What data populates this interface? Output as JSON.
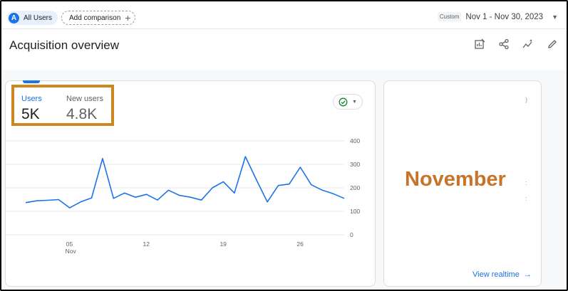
{
  "topbar": {
    "segment": {
      "avatar_letter": "A",
      "label": "All Users"
    },
    "add_comparison": {
      "label": "Add comparison",
      "icon": "plus-icon"
    },
    "date": {
      "custom_label": "Custom",
      "range": "Nov 1 - Nov 30, 2023"
    }
  },
  "page": {
    "title": "Acquisition overview",
    "toolbar_icons": [
      "customize-report-icon",
      "share-icon",
      "insights-icon",
      "edit-icon"
    ]
  },
  "card_main": {
    "metrics": [
      {
        "label": "Users",
        "value": "5K"
      },
      {
        "label": "New users",
        "value": "4.8K"
      }
    ],
    "status_icon": "check-circle-icon",
    "colors": {
      "line": "#1a73e8",
      "highlight": "#cf8620",
      "accent": "#1a73e8"
    }
  },
  "chart_data": {
    "type": "line",
    "title": "",
    "xlabel": "",
    "ylabel": "",
    "x": [
      1,
      2,
      3,
      4,
      5,
      6,
      7,
      8,
      9,
      10,
      11,
      12,
      13,
      14,
      15,
      16,
      17,
      18,
      19,
      20,
      21,
      22,
      23,
      24,
      25,
      26,
      27,
      28,
      29,
      30
    ],
    "series": [
      {
        "values": [
          137,
          145,
          147,
          150,
          115,
          140,
          157,
          325,
          155,
          178,
          160,
          172,
          148,
          190,
          168,
          160,
          148,
          200,
          226,
          178,
          333,
          235,
          140,
          210,
          216,
          288,
          213,
          190,
          175,
          155
        ]
      }
    ],
    "x_tick_labels": [
      {
        "x": 5,
        "label": "05",
        "sublabel": "Nov"
      },
      {
        "x": 12,
        "label": "12",
        "sublabel": ""
      },
      {
        "x": 19,
        "label": "19",
        "sublabel": ""
      },
      {
        "x": 26,
        "label": "26",
        "sublabel": ""
      }
    ],
    "y_ticks": [
      "400",
      "300",
      "200",
      "100",
      "0"
    ],
    "ylim": [
      0,
      400
    ],
    "grid": true
  },
  "card_side": {
    "overlay_text": "November",
    "link": {
      "label": "View realtime",
      "icon": "arrow-right-icon"
    }
  }
}
